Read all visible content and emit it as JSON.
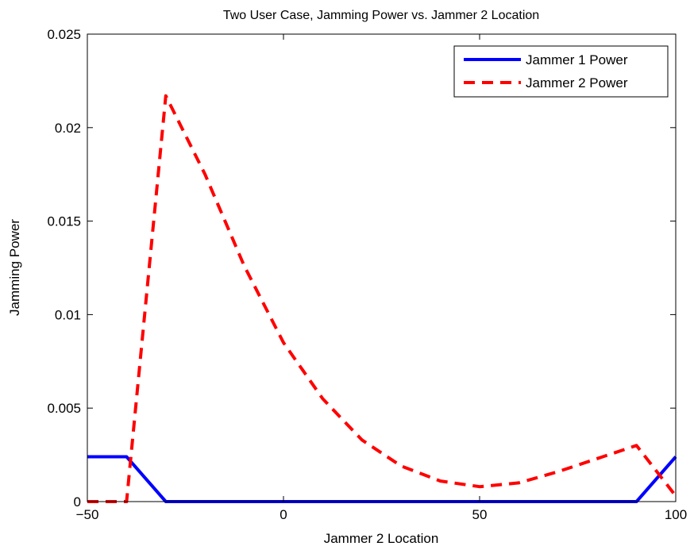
{
  "chart_data": {
    "type": "line",
    "title": "Two User Case, Jamming Power vs. Jammer 2 Location",
    "xlabel": "Jammer 2 Location",
    "ylabel": "Jamming Power",
    "xlim": [
      -50,
      100
    ],
    "ylim": [
      0,
      0.025
    ],
    "xticks": [
      -50,
      0,
      50,
      100
    ],
    "xtick_labels": [
      "−50",
      "0",
      "50",
      "100"
    ],
    "yticks": [
      0,
      0.005,
      0.01,
      0.015,
      0.02,
      0.025
    ],
    "ytick_labels": [
      "0",
      "0.005",
      "0.01",
      "0.015",
      "0.02",
      "0.025"
    ],
    "grid": false,
    "legend_position": "top-right",
    "series": [
      {
        "name": "Jammer 1 Power",
        "color": "#0000ff",
        "style": "solid",
        "x": [
          -50,
          -40,
          -30,
          -20,
          -10,
          0,
          10,
          20,
          30,
          40,
          50,
          60,
          70,
          80,
          90,
          100
        ],
        "y": [
          0.0024,
          0.0024,
          0,
          0,
          0,
          0,
          0,
          0,
          0,
          0,
          0,
          0,
          0,
          0,
          0,
          0.0024
        ]
      },
      {
        "name": "Jammer 2 Power",
        "color": "#ff0000",
        "style": "dashed",
        "x": [
          -50,
          -40,
          -30,
          -20,
          -10,
          0,
          10,
          20,
          30,
          40,
          50,
          60,
          70,
          80,
          90,
          100
        ],
        "y": [
          0,
          0,
          0.0217,
          0.0175,
          0.0126,
          0.0085,
          0.0055,
          0.0033,
          0.0019,
          0.0011,
          0.0008,
          0.001,
          0.0016,
          0.0023,
          0.003,
          0.0003
        ]
      }
    ]
  }
}
